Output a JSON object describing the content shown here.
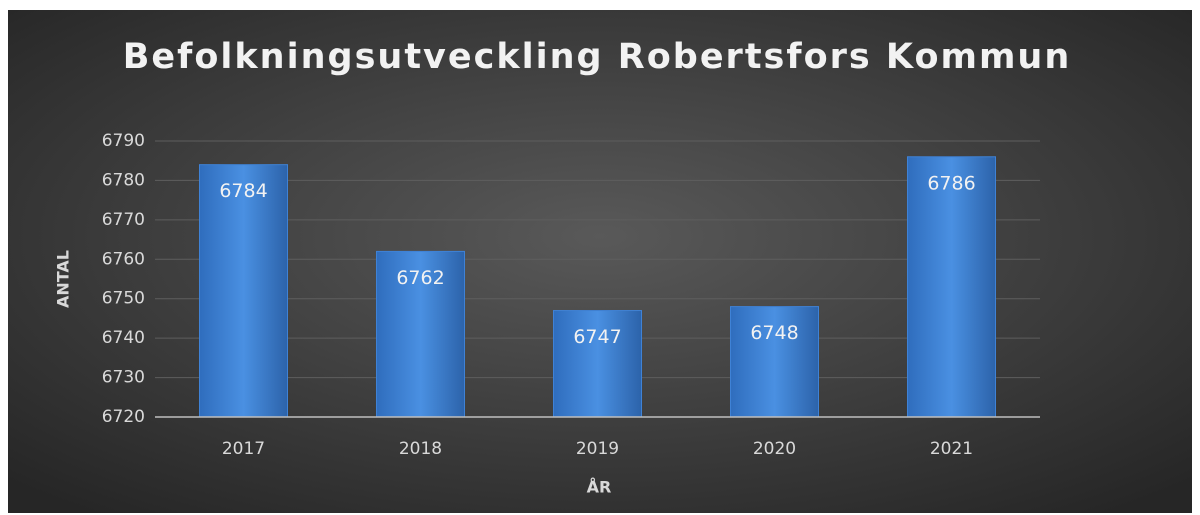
{
  "chart_data": {
    "type": "bar",
    "title": "Befolkningsutveckling Robertsfors Kommun",
    "x_label": "ÅR",
    "y_label": "ANTAL",
    "categories": [
      "2017",
      "2018",
      "2019",
      "2020",
      "2021"
    ],
    "values": [
      6784,
      6762,
      6747,
      6748,
      6786
    ],
    "color": "#3f82d6",
    "ylim": [
      6720,
      6790
    ],
    "yticks": [
      6720,
      6730,
      6740,
      6750,
      6760,
      6770,
      6780,
      6790
    ],
    "grid": true,
    "data_labels": true
  }
}
